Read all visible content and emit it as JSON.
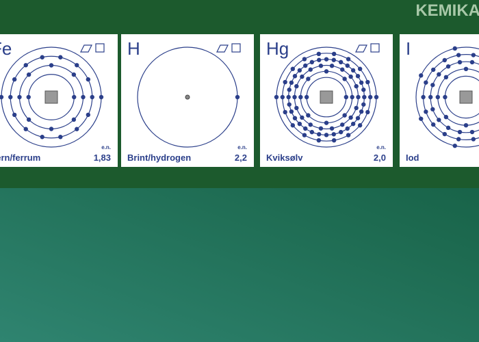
{
  "header": {
    "title": "KEMIKA"
  },
  "cards": [
    {
      "symbol": "Fe",
      "name": "Jern/ferrum",
      "en_label": "e.n.",
      "en": "1,83"
    },
    {
      "symbol": "H",
      "name": "Brint/hydrogen",
      "en_label": "e.n.",
      "en": "2,2"
    },
    {
      "symbol": "Hg",
      "name": "Kviksølv",
      "en_label": "e.n.",
      "en": "2,0"
    },
    {
      "symbol": "I",
      "name": "Iod"
    }
  ]
}
